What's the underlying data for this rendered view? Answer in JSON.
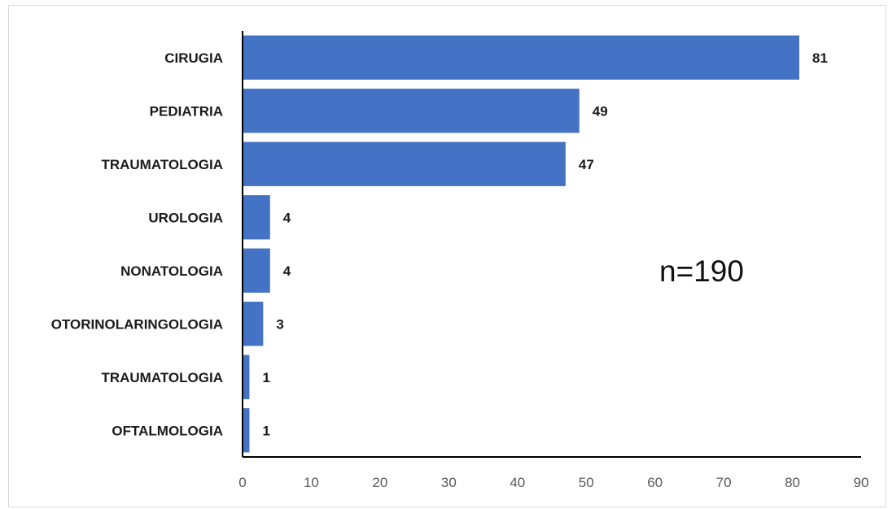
{
  "chart_data": {
    "type": "bar",
    "orientation": "horizontal",
    "categories": [
      "CIRUGIA",
      "PEDIATRIA",
      "TRAUMATOLOGIA",
      "UROLOGIA",
      "NONATOLOGIA",
      "OTORINOLARINGOLOGIA",
      "TRAUMATOLOGIA",
      "OFTALMOLOGIA"
    ],
    "values": [
      81,
      49,
      47,
      4,
      4,
      3,
      1,
      1
    ],
    "data_labels": [
      "81",
      "49",
      "47",
      "4",
      "4",
      "3",
      "1",
      "1"
    ],
    "xlim": [
      0,
      90
    ],
    "x_ticks": [
      0,
      10,
      20,
      30,
      40,
      50,
      60,
      70,
      80,
      90
    ],
    "x_tick_labels": [
      "0",
      "10",
      "20",
      "30",
      "40",
      "50",
      "60",
      "70",
      "80",
      "90"
    ],
    "title": "",
    "xlabel": "",
    "ylabel": "",
    "grid": false,
    "legend": "none",
    "annotation": "n=190",
    "bar_color": "#4472c4"
  }
}
